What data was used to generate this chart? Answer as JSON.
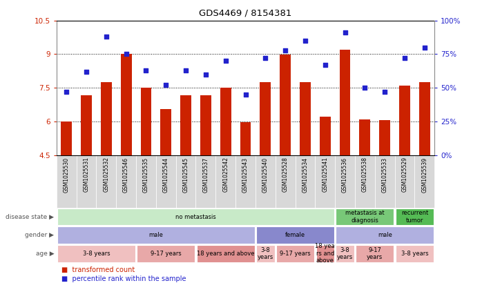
{
  "title": "GDS4469 / 8154381",
  "samples": [
    "GSM1025530",
    "GSM1025531",
    "GSM1025532",
    "GSM1025546",
    "GSM1025535",
    "GSM1025544",
    "GSM1025545",
    "GSM1025537",
    "GSM1025542",
    "GSM1025543",
    "GSM1025540",
    "GSM1025528",
    "GSM1025534",
    "GSM1025541",
    "GSM1025536",
    "GSM1025538",
    "GSM1025533",
    "GSM1025529",
    "GSM1025539"
  ],
  "bar_values": [
    6.0,
    7.15,
    7.75,
    9.0,
    7.5,
    6.55,
    7.15,
    7.15,
    7.5,
    5.97,
    7.75,
    8.97,
    7.75,
    6.2,
    9.2,
    6.1,
    6.05,
    7.6,
    7.75
  ],
  "dot_values": [
    47,
    62,
    88,
    75,
    63,
    52,
    63,
    60,
    70,
    45,
    72,
    78,
    85,
    67,
    91,
    50,
    47,
    72,
    80
  ],
  "bar_color": "#cc2200",
  "dot_color": "#2222cc",
  "ylim_left": [
    4.5,
    10.5
  ],
  "ylim_right": [
    0,
    100
  ],
  "yticks_left": [
    4.5,
    6.0,
    7.5,
    9.0,
    10.5
  ],
  "ytick_labels_left": [
    "4.5",
    "6",
    "7.5",
    "9",
    "10.5"
  ],
  "yticks_right": [
    0,
    25,
    50,
    75,
    100
  ],
  "ytick_labels_right": [
    "0%",
    "25%",
    "50%",
    "75%",
    "100%"
  ],
  "hlines": [
    6.0,
    7.5,
    9.0
  ],
  "disease_state_groups": [
    {
      "label": "no metastasis",
      "start": 0,
      "end": 14,
      "color": "#c8eac8"
    },
    {
      "label": "metastasis at\ndiagnosis",
      "start": 14,
      "end": 17,
      "color": "#78c878"
    },
    {
      "label": "recurrent\ntumor",
      "start": 17,
      "end": 19,
      "color": "#55bb55"
    }
  ],
  "gender_groups": [
    {
      "label": "male",
      "start": 0,
      "end": 10,
      "color": "#b0b0e0"
    },
    {
      "label": "female",
      "start": 10,
      "end": 14,
      "color": "#8888cc"
    },
    {
      "label": "male",
      "start": 14,
      "end": 19,
      "color": "#b0b0e0"
    }
  ],
  "age_groups": [
    {
      "label": "3-8 years",
      "start": 0,
      "end": 4,
      "color": "#f0c0c0"
    },
    {
      "label": "9-17 years",
      "start": 4,
      "end": 7,
      "color": "#e8a8a8"
    },
    {
      "label": "18 years and above",
      "start": 7,
      "end": 10,
      "color": "#e09090"
    },
    {
      "label": "3-8\nyears",
      "start": 10,
      "end": 11,
      "color": "#f0c0c0"
    },
    {
      "label": "9-17 years",
      "start": 11,
      "end": 13,
      "color": "#e8a8a8"
    },
    {
      "label": "18 yea\nrs and\nabove",
      "start": 13,
      "end": 14,
      "color": "#e09090"
    },
    {
      "label": "3-8\nyears",
      "start": 14,
      "end": 15,
      "color": "#f0c0c0"
    },
    {
      "label": "9-17\nyears",
      "start": 15,
      "end": 17,
      "color": "#e8a8a8"
    },
    {
      "label": "3-8 years",
      "start": 17,
      "end": 19,
      "color": "#f0c0c0"
    }
  ],
  "row_labels": [
    "disease state",
    "gender",
    "age"
  ],
  "legend_items": [
    {
      "label": "transformed count",
      "color": "#cc2200"
    },
    {
      "label": "percentile rank within the sample",
      "color": "#2222cc"
    }
  ],
  "xticklabel_bg": "#d8d8d8"
}
